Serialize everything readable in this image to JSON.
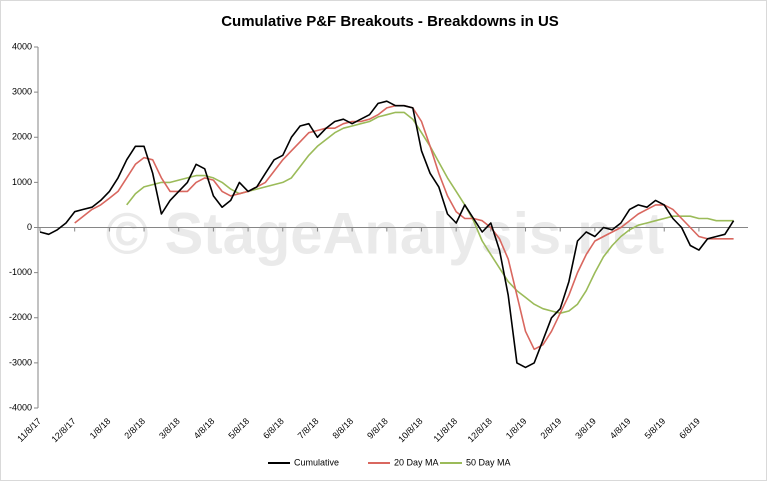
{
  "chart_data": {
    "type": "line",
    "title": "Cumulative P&F Breakouts - Breakdowns in US",
    "watermark": "© StageAnalysis.net",
    "categories": [
      "11/8/17",
      null,
      null,
      null,
      "12/8/17",
      null,
      null,
      null,
      "1/8/18",
      null,
      null,
      null,
      "2/8/18",
      null,
      null,
      null,
      "3/8/18",
      null,
      null,
      null,
      "4/8/18",
      null,
      null,
      null,
      "5/8/18",
      null,
      null,
      null,
      "6/8/18",
      null,
      null,
      null,
      "7/8/18",
      null,
      null,
      null,
      "8/8/18",
      null,
      null,
      null,
      "9/8/18",
      null,
      null,
      null,
      "10/8/18",
      null,
      null,
      null,
      "11/8/18",
      null,
      null,
      null,
      "12/8/18",
      null,
      null,
      null,
      "1/8/19",
      null,
      null,
      null,
      "2/8/19",
      null,
      null,
      null,
      "3/8/19",
      null,
      null,
      null,
      "4/8/19",
      null,
      null,
      null,
      "5/8/19",
      null,
      null,
      null,
      "6/8/19",
      null,
      null,
      null,
      null
    ],
    "series": [
      {
        "name": "Cumulative",
        "color": "#000000",
        "values": [
          -100,
          -150,
          -50,
          100,
          350,
          400,
          450,
          600,
          800,
          1100,
          1500,
          1800,
          1800,
          1200,
          300,
          600,
          800,
          1000,
          1400,
          1300,
          700,
          450,
          600,
          1000,
          800,
          900,
          1200,
          1500,
          1600,
          2000,
          2250,
          2300,
          2000,
          2200,
          2350,
          2400,
          2300,
          2400,
          2500,
          2750,
          2800,
          2700,
          2700,
          2650,
          1700,
          1200,
          900,
          300,
          100,
          500,
          200,
          -100,
          100,
          -500,
          -1500,
          -3000,
          -3100,
          -3000,
          -2500,
          -2000,
          -1800,
          -1200,
          -300,
          -100,
          -200,
          0,
          -50,
          100,
          400,
          500,
          450,
          600,
          500,
          200,
          0,
          -400,
          -500,
          -250,
          -200,
          -150,
          150
        ]
      },
      {
        "name": "20 Day MA",
        "color": "#d9675f",
        "values": [
          null,
          null,
          null,
          null,
          100,
          250,
          400,
          500,
          650,
          800,
          1100,
          1400,
          1550,
          1500,
          1100,
          800,
          800,
          800,
          1000,
          1100,
          1050,
          800,
          700,
          750,
          800,
          900,
          1000,
          1250,
          1500,
          1700,
          1900,
          2100,
          2150,
          2200,
          2200,
          2300,
          2350,
          2350,
          2400,
          2500,
          2650,
          2700,
          2700,
          2650,
          2350,
          1800,
          1200,
          700,
          350,
          200,
          200,
          150,
          0,
          -250,
          -700,
          -1500,
          -2300,
          -2700,
          -2600,
          -2300,
          -1900,
          -1500,
          -1000,
          -600,
          -300,
          -200,
          -100,
          0,
          150,
          300,
          400,
          500,
          500,
          400,
          200,
          0,
          -200,
          -250,
          -250,
          -250,
          -250
        ]
      },
      {
        "name": "50 Day MA",
        "color": "#9bbb59",
        "values": [
          null,
          null,
          null,
          null,
          null,
          null,
          null,
          null,
          null,
          null,
          500,
          750,
          900,
          950,
          1000,
          1000,
          1050,
          1100,
          1150,
          1150,
          1100,
          1000,
          850,
          750,
          800,
          850,
          900,
          950,
          1000,
          1100,
          1350,
          1600,
          1800,
          1950,
          2100,
          2200,
          2250,
          2300,
          2350,
          2450,
          2500,
          2550,
          2550,
          2400,
          2100,
          1800,
          1450,
          1100,
          800,
          500,
          150,
          -300,
          -600,
          -900,
          -1200,
          -1400,
          -1550,
          -1700,
          -1800,
          -1850,
          -1900,
          -1850,
          -1700,
          -1400,
          -1000,
          -650,
          -400,
          -200,
          -50,
          50,
          100,
          150,
          200,
          250,
          250,
          250,
          200,
          200,
          150,
          150,
          150
        ]
      }
    ],
    "ylim": [
      -4000,
      4000
    ],
    "yticks": [
      -4000,
      -3000,
      -2000,
      -1000,
      0,
      1000,
      2000,
      3000,
      4000
    ],
    "legend": "bottom"
  }
}
